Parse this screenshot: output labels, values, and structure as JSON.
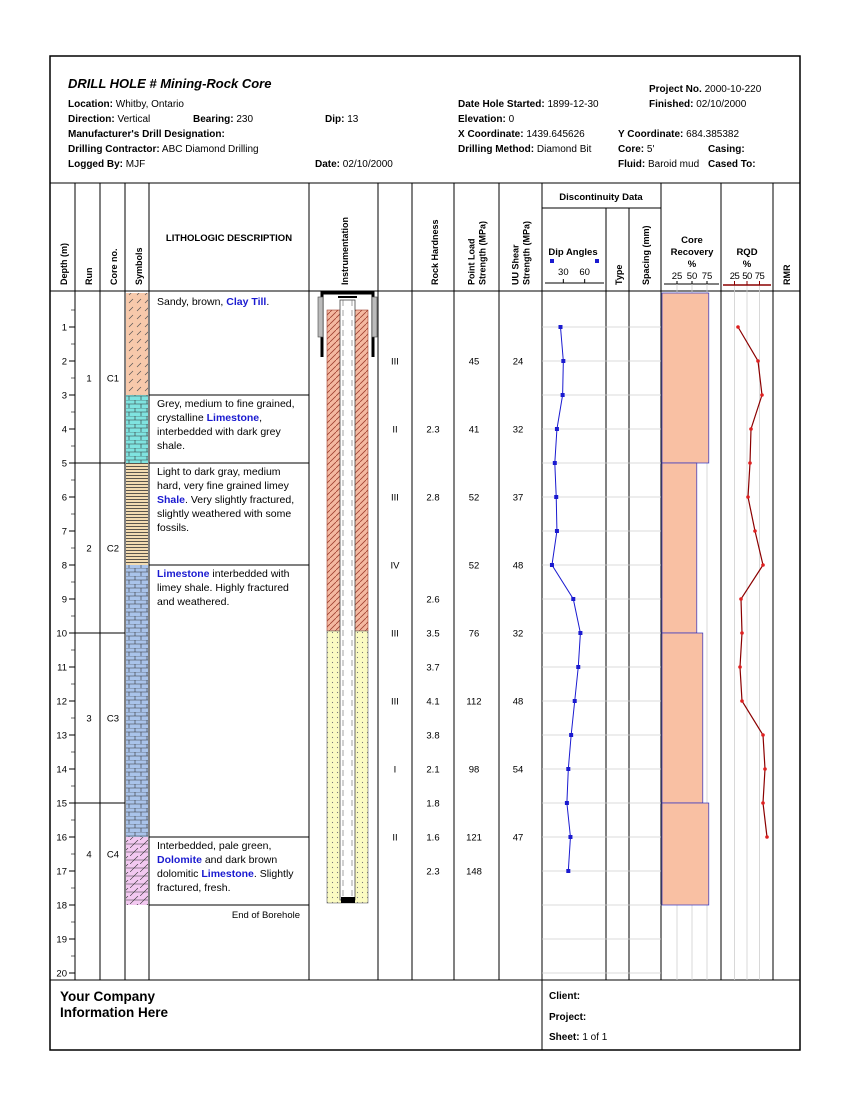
{
  "header": {
    "title": "DRILL HOLE # Mining-Rock Core",
    "fields": [
      {
        "label": "Location:",
        "value": "Whitby, Ontario"
      },
      {
        "label": "Direction:",
        "value": "Vertical"
      },
      {
        "label": "Bearing:",
        "value": "230"
      },
      {
        "label": "Dip:",
        "value": "13"
      },
      {
        "label": "Manufacturer's Drill Designation:"
      },
      {
        "label": "Drilling Contractor:",
        "value": "ABC Diamond Drilling"
      },
      {
        "label": "Logged By:",
        "value": "MJF"
      },
      {
        "label": "Date:",
        "value": "02/10/2000"
      },
      {
        "label": "Project No.",
        "value": "2000-10-220"
      },
      {
        "label": "Date Hole Started:",
        "value": "1899-12-30"
      },
      {
        "label": "Finished:",
        "value": "02/10/2000"
      },
      {
        "label": "Elevation:",
        "value": "0"
      },
      {
        "label": "X Coordinate:",
        "value": "1439.645626"
      },
      {
        "label": "Y Coordinate:",
        "value": "684.385382"
      },
      {
        "label": "Drilling Method:",
        "value": "Diamond Bit"
      },
      {
        "label": "Core:",
        "value": "5'"
      },
      {
        "label": "Casing:"
      },
      {
        "label": "Fluid:",
        "value": "Baroid mud"
      },
      {
        "label": "Cased To:"
      }
    ]
  },
  "columns": {
    "depth": [
      "Depth (m)"
    ],
    "run": [
      "Run"
    ],
    "core": [
      "Core no."
    ],
    "symbols": [
      "Symbols"
    ],
    "description": "LITHOLOGIC DESCRIPTION",
    "instrumentation": [
      "Instrumentation"
    ],
    "hardness": [
      "Rock Hardness"
    ],
    "point_load": [
      "Point Load",
      "Strength (MPa)"
    ],
    "uu_shear": [
      "UU Shear",
      "Strength (MPa)"
    ],
    "discontinuity": "Discontinuity Data",
    "type": [
      "Type"
    ],
    "spacing": [
      "Spacing (mm)"
    ],
    "core_recovery": [
      "Core",
      "Recovery",
      "%"
    ],
    "rqd": [
      "RQD",
      "%"
    ],
    "rmr": [
      "RMR"
    ]
  },
  "depth_scale": {
    "range": [
      0,
      20
    ],
    "ticks": [
      1,
      2,
      3,
      4,
      5,
      6,
      7,
      8,
      9,
      10,
      11,
      12,
      13,
      14,
      15,
      16,
      17,
      18,
      19,
      20
    ]
  },
  "runs": [
    {
      "run": 1,
      "core": "C1",
      "top": 0,
      "bottom": 5
    },
    {
      "run": 2,
      "core": "C2",
      "top": 5,
      "bottom": 10
    },
    {
      "run": 3,
      "core": "C3",
      "top": 10,
      "bottom": 15
    },
    {
      "run": 4,
      "core": "C4",
      "top": 15,
      "bottom": 18
    }
  ],
  "layers": [
    {
      "top": 0,
      "bottom": 3,
      "color": "#f7c9ab",
      "hatch": "dash",
      "description": [
        {
          "text": "Sandy, brown, "
        },
        {
          "text": "Clay Till",
          "highlight": true
        },
        {
          "text": "."
        }
      ]
    },
    {
      "top": 3,
      "bottom": 5,
      "color": "#7fe3e0",
      "hatch": "brick",
      "description": [
        {
          "text": "Grey, medium to fine grained, crystalline "
        },
        {
          "text": "Limestone",
          "highlight": true
        },
        {
          "text": ", interbedded with dark grey shale."
        }
      ]
    },
    {
      "top": 5,
      "bottom": 8,
      "color": "#f3dcb2",
      "hatch": "lines",
      "description": [
        {
          "text": "Light to dark gray, medium hard, very fine grained limey "
        },
        {
          "text": "Shale",
          "highlight": true
        },
        {
          "text": ". Very slightly fractured, slightly weathered with some fossils."
        }
      ]
    },
    {
      "top": 8,
      "bottom": 16,
      "color": "#a9c3ea",
      "hatch": "brick",
      "description": [
        {
          "text": "Limestone",
          "highlight": true
        },
        {
          "text": " interbedded with limey shale. Highly fractured and weathered."
        }
      ]
    },
    {
      "top": 16,
      "bottom": 18,
      "color": "#f2c8f0",
      "hatch": "diagonal",
      "description": [
        {
          "text": "Interbedded, pale green, "
        },
        {
          "text": "Dolomite",
          "highlight": true
        },
        {
          "text": " and dark brown dolomitic "
        },
        {
          "text": "Limestone",
          "highlight": true
        },
        {
          "text": ". Slightly fractured, fresh."
        }
      ]
    }
  ],
  "end_note": "End of Borehole",
  "tests": [
    {
      "depth": 2,
      "rock_class": "III",
      "hardness": null,
      "point_load": 45,
      "uu_shear": 24
    },
    {
      "depth": 4,
      "rock_class": "II",
      "hardness": 2.3,
      "point_load": 41,
      "uu_shear": 32
    },
    {
      "depth": 6,
      "rock_class": "III",
      "hardness": 2.8,
      "point_load": 52,
      "uu_shear": 37
    },
    {
      "depth": 8,
      "rock_class": "IV",
      "hardness": null,
      "point_load": 52,
      "uu_shear": 48
    },
    {
      "depth": 9,
      "rock_class": null,
      "hardness": 2.6,
      "point_load": null,
      "uu_shear": null
    },
    {
      "depth": 10,
      "rock_class": "III",
      "hardness": 3.5,
      "point_load": 76,
      "uu_shear": 32
    },
    {
      "depth": 11,
      "rock_class": null,
      "hardness": 3.7,
      "point_load": null,
      "uu_shear": null
    },
    {
      "depth": 12,
      "rock_class": "III",
      "hardness": 4.1,
      "point_load": 112,
      "uu_shear": 48
    },
    {
      "depth": 13,
      "rock_class": null,
      "hardness": 3.8,
      "point_load": null,
      "uu_shear": null
    },
    {
      "depth": 14,
      "rock_class": "I",
      "hardness": 2.1,
      "point_load": 98,
      "uu_shear": 54
    },
    {
      "depth": 15,
      "rock_class": null,
      "hardness": 1.8,
      "point_load": null,
      "uu_shear": null
    },
    {
      "depth": 16,
      "rock_class": "II",
      "hardness": 1.6,
      "point_load": 121,
      "uu_shear": 47
    },
    {
      "depth": 17,
      "rock_class": null,
      "hardness": 2.3,
      "point_load": 148,
      "uu_shear": null
    }
  ],
  "dip_angles": {
    "name": "Dip Angles",
    "color": "#1a1ad0",
    "xlim": [
      0,
      90
    ],
    "xticks": [
      30,
      60
    ],
    "depths": [
      1,
      2,
      3,
      4,
      5,
      6,
      7,
      8,
      9,
      10,
      11,
      12,
      13,
      14,
      15,
      16,
      17
    ],
    "values": [
      26,
      30,
      29,
      21,
      18,
      20,
      21,
      14,
      44,
      54,
      51,
      46,
      41,
      37,
      35,
      40,
      37
    ]
  },
  "core_recovery": {
    "color": "#f9c0a3",
    "xlim": [
      0,
      100
    ],
    "xticks": [
      25,
      50,
      75
    ],
    "values": [
      78,
      58,
      68,
      78
    ]
  },
  "rqd": {
    "color": "#8b0000",
    "xlim": [
      0,
      100
    ],
    "xticks": [
      25,
      50,
      75
    ],
    "depths": [
      1,
      2,
      3,
      4,
      5,
      6,
      7,
      8,
      9,
      10,
      11,
      12,
      13,
      14,
      15,
      16
    ],
    "values": [
      32,
      72,
      80,
      58,
      56,
      52,
      66,
      82,
      38,
      40,
      36,
      40,
      82,
      86,
      82,
      90
    ]
  },
  "footer": {
    "company": [
      "Your Company",
      "Information Here"
    ],
    "client": "Client:",
    "project": "Project:",
    "sheet": {
      "label": "Sheet:",
      "value": "1 of 1"
    }
  }
}
